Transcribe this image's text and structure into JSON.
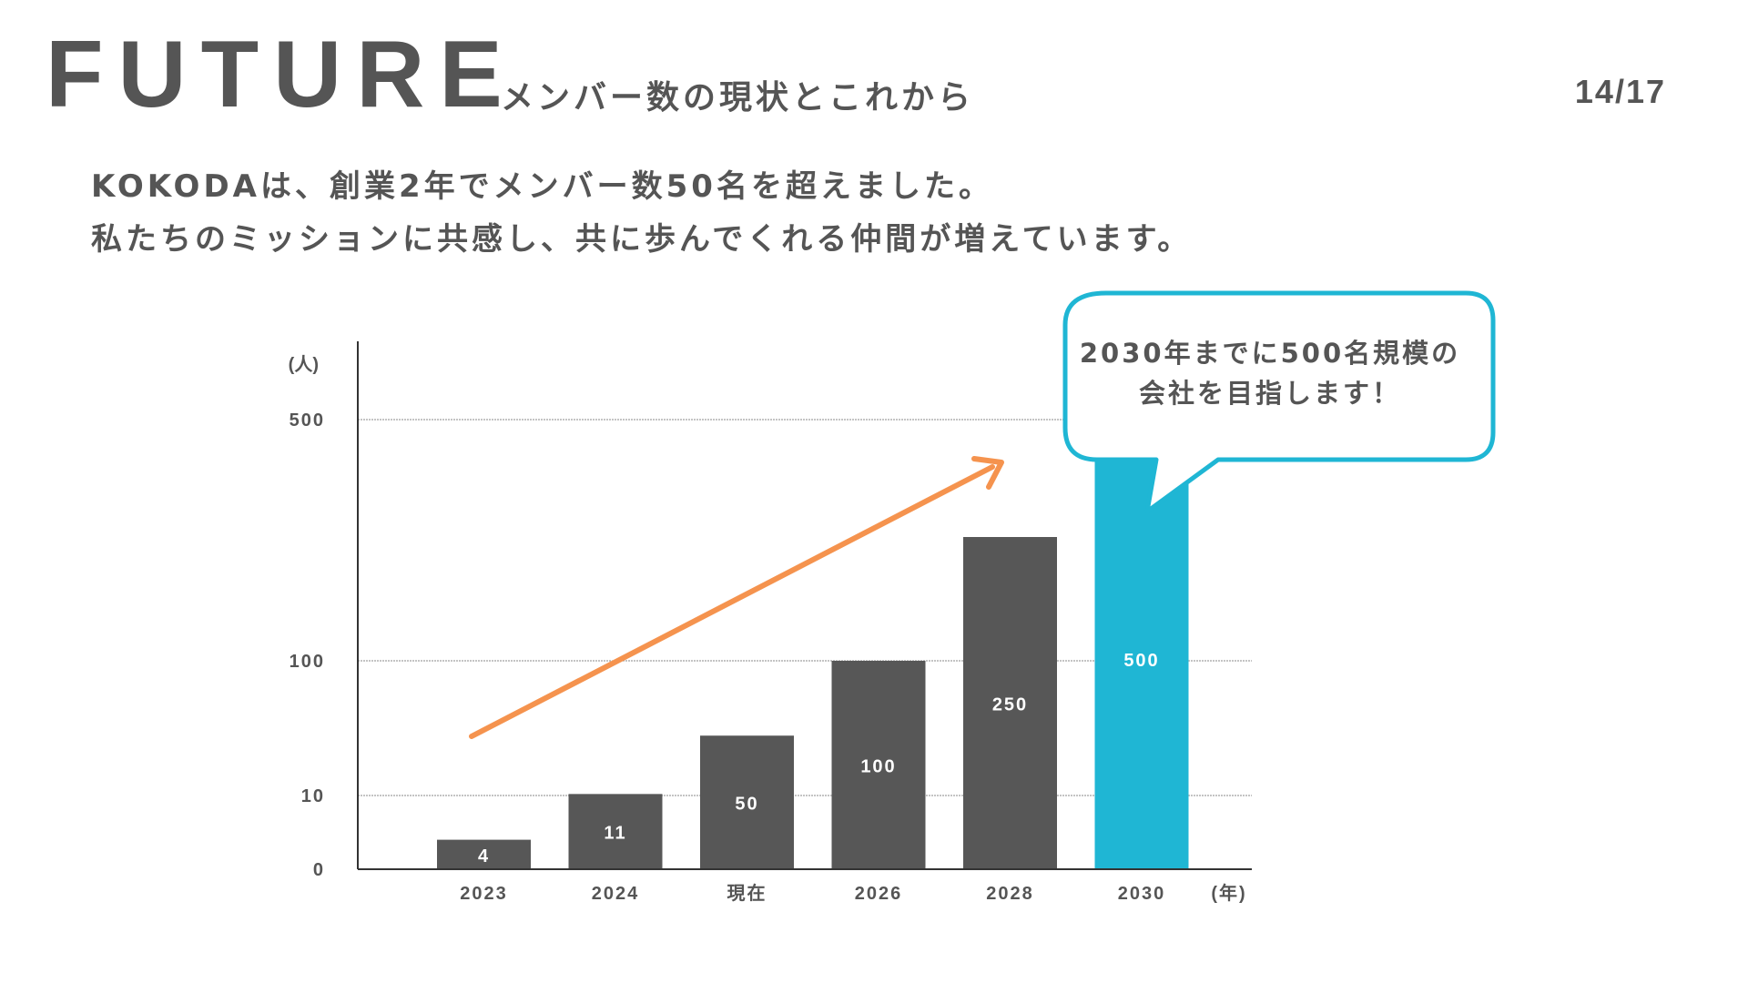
{
  "header": {
    "title": "FUTURE",
    "subtitle": "メンバー数の現状とこれから",
    "page_number": "14/17"
  },
  "lead": {
    "line1": "KOKODAは、創業2年でメンバー数50名を超えました。",
    "line2": "私たちのミッションに共感し、共に歩んでくれる仲間が増えています。"
  },
  "callout": {
    "line1": "2030年までに500名規模の",
    "line2": "会社を目指します！"
  },
  "colors": {
    "bar": "#575757",
    "highlight": "#1fb6d4",
    "arrow": "#f5934e",
    "text": "#555555"
  },
  "chart_data": {
    "type": "bar",
    "categories": [
      "2023",
      "2024",
      "現在",
      "2026",
      "2028",
      "2030"
    ],
    "values": [
      4,
      11,
      50,
      100,
      250,
      500
    ],
    "highlight_index": 5,
    "y_unit": "(人)",
    "x_unit": "(年)",
    "y_ticks": [
      0,
      10,
      100,
      500
    ],
    "gridlines": [
      10,
      100,
      500
    ],
    "ylim": [
      0,
      600
    ],
    "scale": "piecewise",
    "trend_arrow": true
  }
}
